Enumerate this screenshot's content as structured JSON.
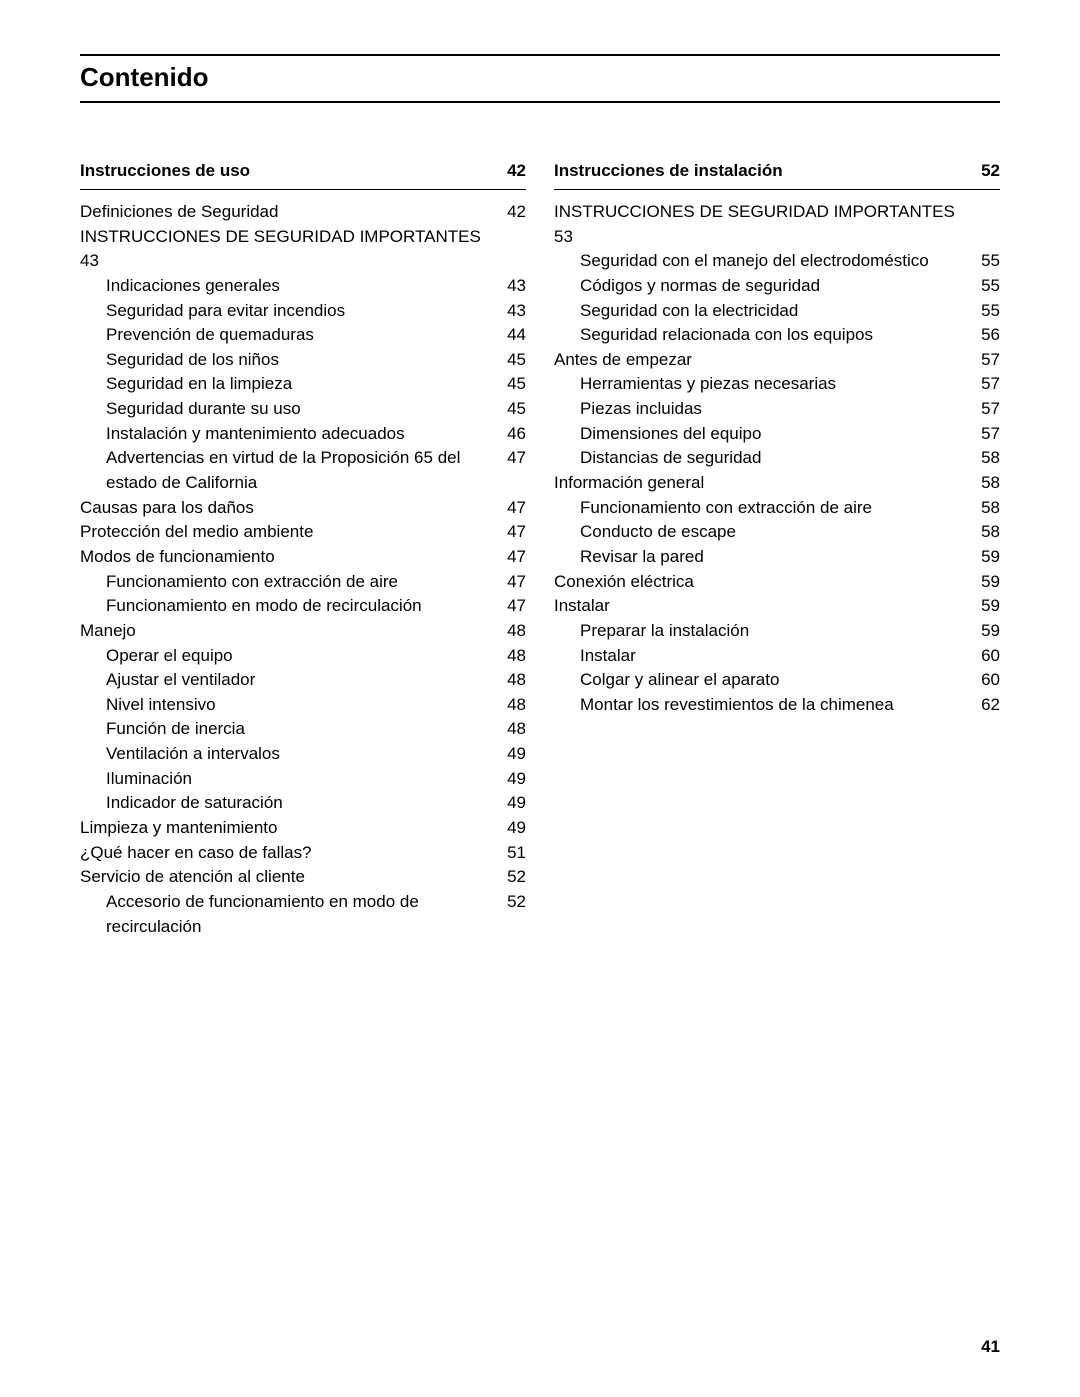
{
  "title": "Contenido",
  "page_number": "41",
  "columns": [
    {
      "header": {
        "label": "Instrucciones de uso",
        "page": "42"
      },
      "entries": [
        {
          "level": 0,
          "label": "Definiciones de Seguridad",
          "page": "42"
        },
        {
          "level": 0,
          "label": "INSTRUCCIONES DE SEGURIDAD IMPORTANTES",
          "page": "43",
          "wrap": true
        },
        {
          "level": 1,
          "label": "Indicaciones generales",
          "page": "43"
        },
        {
          "level": 1,
          "label": "Seguridad para evitar incendios",
          "page": "43"
        },
        {
          "level": 1,
          "label": "Prevención de quemaduras",
          "page": "44"
        },
        {
          "level": 1,
          "label": "Seguridad de los niños",
          "page": "45"
        },
        {
          "level": 1,
          "label": "Seguridad en la limpieza",
          "page": "45"
        },
        {
          "level": 1,
          "label": "Seguridad durante su uso",
          "page": "45"
        },
        {
          "level": 1,
          "label": "Instalación y mantenimiento adecuados",
          "page": "46"
        },
        {
          "level": 1,
          "label": "Advertencias en virtud de la Proposición 65 del estado de California",
          "page": "47"
        },
        {
          "level": 0,
          "label": "Causas para los daños",
          "page": "47"
        },
        {
          "level": 0,
          "label": "Protección del medio ambiente",
          "page": "47"
        },
        {
          "level": 0,
          "label": "Modos de funcionamiento",
          "page": "47"
        },
        {
          "level": 1,
          "label": "Funcionamiento con extracción de aire",
          "page": "47"
        },
        {
          "level": 1,
          "label": "Funcionamiento en modo de recirculación",
          "page": "47"
        },
        {
          "level": 0,
          "label": "Manejo",
          "page": "48"
        },
        {
          "level": 1,
          "label": "Operar el equipo",
          "page": "48"
        },
        {
          "level": 1,
          "label": "Ajustar el ventilador",
          "page": "48"
        },
        {
          "level": 1,
          "label": "Nivel intensivo",
          "page": "48"
        },
        {
          "level": 1,
          "label": "Función de inercia",
          "page": "48"
        },
        {
          "level": 1,
          "label": "Ventilación a intervalos",
          "page": "49"
        },
        {
          "level": 1,
          "label": "Iluminación",
          "page": "49"
        },
        {
          "level": 1,
          "label": "Indicador de saturación",
          "page": "49"
        },
        {
          "level": 0,
          "label": "Limpieza y mantenimiento",
          "page": "49"
        },
        {
          "level": 0,
          "label": "¿Qué hacer en caso de fallas?",
          "page": "51"
        },
        {
          "level": 0,
          "label": "Servicio de atención al cliente",
          "page": "52"
        },
        {
          "level": 1,
          "label": "Accesorio de funcionamiento en modo de recirculación",
          "page": "52"
        }
      ]
    },
    {
      "header": {
        "label": "Instrucciones de instalación",
        "page": "52"
      },
      "entries": [
        {
          "level": 0,
          "label": "INSTRUCCIONES DE SEGURIDAD IMPORTANTES",
          "page": "53",
          "wrap": true
        },
        {
          "level": 1,
          "label": "Seguridad con el manejo del electrodoméstico",
          "page": "55"
        },
        {
          "level": 1,
          "label": "Códigos y normas de seguridad",
          "page": "55"
        },
        {
          "level": 1,
          "label": "Seguridad con la electricidad",
          "page": "55"
        },
        {
          "level": 1,
          "label": "Seguridad relacionada con los equipos",
          "page": "56"
        },
        {
          "level": 0,
          "label": "Antes de empezar",
          "page": "57"
        },
        {
          "level": 1,
          "label": "Herramientas y piezas necesarias",
          "page": "57"
        },
        {
          "level": 1,
          "label": "Piezas incluidas",
          "page": "57"
        },
        {
          "level": 1,
          "label": "Dimensiones del equipo",
          "page": "57"
        },
        {
          "level": 1,
          "label": "Distancias de seguridad",
          "page": "58"
        },
        {
          "level": 0,
          "label": "Información general",
          "page": "58"
        },
        {
          "level": 1,
          "label": "Funcionamiento con extracción de aire",
          "page": "58"
        },
        {
          "level": 1,
          "label": "Conducto de escape",
          "page": "58"
        },
        {
          "level": 1,
          "label": "Revisar la pared",
          "page": "59"
        },
        {
          "level": 0,
          "label": "Conexión eléctrica",
          "page": "59"
        },
        {
          "level": 0,
          "label": "Instalar",
          "page": "59"
        },
        {
          "level": 1,
          "label": "Preparar la instalación",
          "page": "59"
        },
        {
          "level": 1,
          "label": "Instalar",
          "page": "60"
        },
        {
          "level": 1,
          "label": "Colgar y alinear el aparato",
          "page": "60"
        },
        {
          "level": 1,
          "label": "Montar los revestimientos de la chimenea",
          "page": "62"
        }
      ]
    }
  ]
}
